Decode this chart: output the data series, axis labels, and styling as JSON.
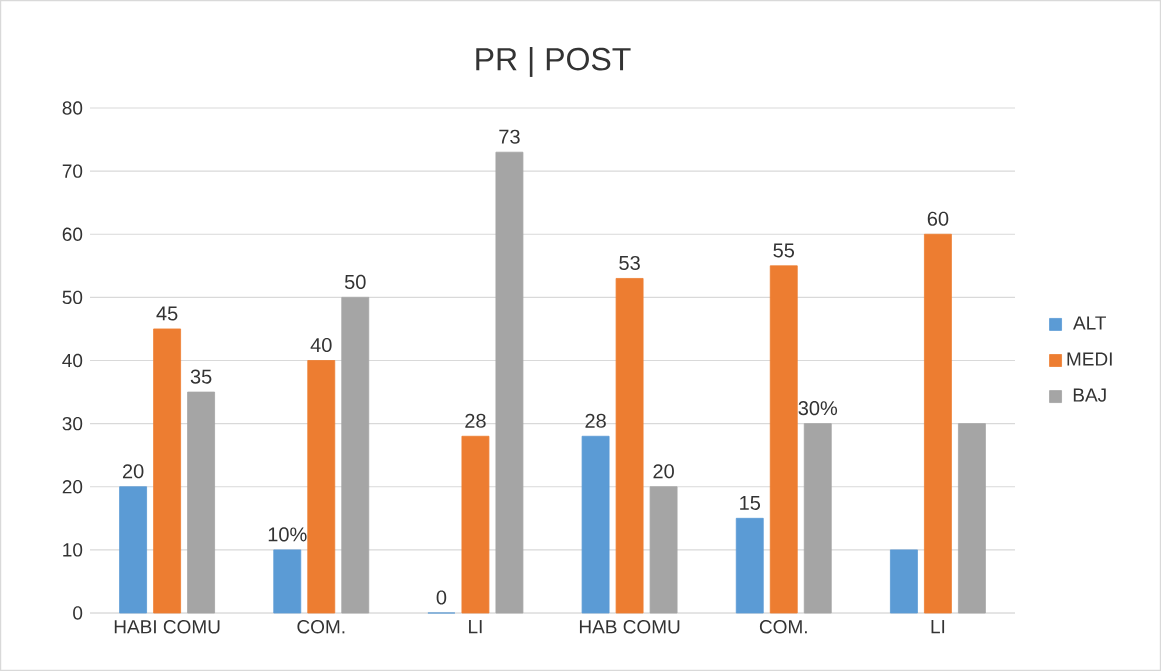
{
  "chart_data": {
    "type": "bar",
    "title": "PR | POST",
    "categories": [
      "HABI COMU",
      "COM.",
      "LI",
      "HAB COMU",
      "COM.",
      "LI"
    ],
    "series": [
      {
        "name": "ALT",
        "color": "#5b9bd5",
        "values": [
          20,
          10,
          0,
          28,
          15,
          10
        ],
        "value_labels": [
          "20",
          "10%",
          "0",
          "28",
          "15",
          null
        ]
      },
      {
        "name": "MEDI",
        "color": "#ed7d31",
        "values": [
          45,
          40,
          28,
          53,
          55,
          60
        ],
        "value_labels": [
          "45",
          "40",
          "28",
          "53",
          "55",
          "60"
        ]
      },
      {
        "name": "BAJ",
        "color": "#a5a5a5",
        "values": [
          35,
          50,
          73,
          20,
          30,
          30
        ],
        "value_labels": [
          "35",
          "50",
          "73",
          "20",
          "30%",
          null
        ]
      }
    ],
    "ylim": [
      0,
      80
    ],
    "yticks": [
      0,
      10,
      20,
      30,
      40,
      50,
      60,
      70,
      80
    ],
    "grid": "y",
    "legend": "right"
  }
}
